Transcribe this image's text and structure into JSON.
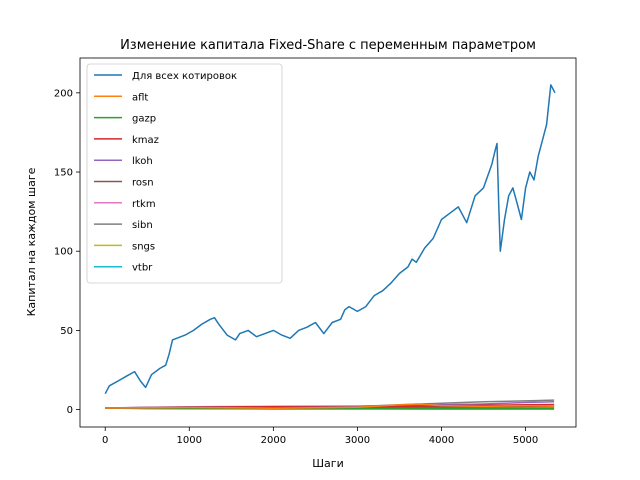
{
  "chart_data": {
    "type": "line",
    "title": "Изменение капитала Fixed-Share с переменным параметром",
    "xlabel": "Шаги",
    "ylabel": "Капитал на каждом шаге",
    "xlim": [
      -300,
      5600
    ],
    "ylim": [
      -11,
      222
    ],
    "xticks": [
      0,
      1000,
      2000,
      3000,
      4000,
      5000
    ],
    "yticks": [
      0,
      50,
      100,
      150,
      200
    ],
    "grid": false,
    "legend_position": "upper-left",
    "series": [
      {
        "name": "Для всех котировок",
        "color": "#1f77b4",
        "x": [
          0,
          50,
          150,
          250,
          350,
          420,
          480,
          550,
          650,
          720,
          760,
          800,
          850,
          950,
          1050,
          1150,
          1250,
          1300,
          1350,
          1450,
          1550,
          1600,
          1700,
          1800,
          1900,
          2000,
          2100,
          2200,
          2300,
          2400,
          2500,
          2600,
          2700,
          2800,
          2850,
          2900,
          3000,
          3100,
          3200,
          3300,
          3400,
          3500,
          3600,
          3650,
          3700,
          3800,
          3900,
          4000,
          4100,
          4200,
          4300,
          4400,
          4500,
          4600,
          4630,
          4660,
          4680,
          4700,
          4750,
          4800,
          4850,
          4900,
          4950,
          5000,
          5050,
          5100,
          5150,
          5200,
          5250,
          5300,
          5350
        ],
        "y": [
          10,
          15,
          18,
          21,
          24,
          18,
          14,
          22,
          26,
          28,
          35,
          44,
          45,
          47,
          50,
          54,
          57,
          58,
          54,
          47,
          44,
          48,
          50,
          46,
          48,
          50,
          47,
          45,
          50,
          52,
          55,
          48,
          55,
          57,
          63,
          65,
          62,
          65,
          72,
          75,
          80,
          86,
          90,
          95,
          93,
          102,
          108,
          120,
          124,
          128,
          118,
          135,
          140,
          155,
          162,
          168,
          130,
          100,
          120,
          135,
          140,
          130,
          120,
          140,
          150,
          145,
          160,
          170,
          180,
          205,
          200
        ]
      },
      {
        "name": "aflt",
        "color": "#ff7f0e",
        "x": [
          0,
          1000,
          2000,
          3000,
          3700,
          4000,
          4500,
          5000,
          5340
        ],
        "y": [
          1,
          1.3,
          0.9,
          1.5,
          3.5,
          2.5,
          2,
          2.5,
          2.2
        ]
      },
      {
        "name": "gazp",
        "color": "#2ca02c",
        "x": [
          0,
          1000,
          2000,
          3000,
          4000,
          5000,
          5340
        ],
        "y": [
          1,
          0.9,
          0.7,
          0.8,
          0.9,
          0.8,
          0.9
        ]
      },
      {
        "name": "kmaz",
        "color": "#d62728",
        "x": [
          0,
          1000,
          2000,
          3000,
          4000,
          5000,
          5340
        ],
        "y": [
          1,
          1.5,
          1.8,
          1.5,
          2.5,
          3,
          3.2
        ]
      },
      {
        "name": "lkoh",
        "color": "#9467bd",
        "x": [
          0,
          1000,
          2000,
          3000,
          4000,
          4500,
          5000,
          5340
        ],
        "y": [
          1,
          1.8,
          2,
          2.2,
          3,
          3.5,
          4.5,
          5
        ]
      },
      {
        "name": "rosn",
        "color": "#8c564b",
        "x": [
          0,
          1000,
          2000,
          3000,
          4000,
          5000,
          5340
        ],
        "y": [
          1,
          1.2,
          1.3,
          1.4,
          1.8,
          2,
          2.1
        ]
      },
      {
        "name": "rtkm",
        "color": "#e377c2",
        "x": [
          0,
          1000,
          2000,
          3000,
          4000,
          5000,
          5340
        ],
        "y": [
          1,
          0.8,
          0.7,
          0.8,
          0.9,
          0.9,
          1
        ]
      },
      {
        "name": "sibn",
        "color": "#7f7f7f",
        "x": [
          0,
          1000,
          2000,
          3000,
          3500,
          4000,
          4500,
          5000,
          5340
        ],
        "y": [
          1,
          1.5,
          1.8,
          2,
          3,
          4,
          5,
          5.5,
          6
        ]
      },
      {
        "name": "sngs",
        "color": "#bcbd22",
        "x": [
          0,
          1000,
          2000,
          3000,
          4000,
          5000,
          5340
        ],
        "y": [
          1,
          1.5,
          1.2,
          1.3,
          1.3,
          1.4,
          1.5
        ]
      },
      {
        "name": "vtbr",
        "color": "#17becf",
        "x": [
          0,
          500,
          1000,
          2000,
          3000,
          4000,
          5000,
          5340
        ],
        "y": [
          1,
          0.5,
          0.4,
          0.3,
          0.3,
          0.2,
          0.2,
          0.2
        ]
      }
    ]
  }
}
